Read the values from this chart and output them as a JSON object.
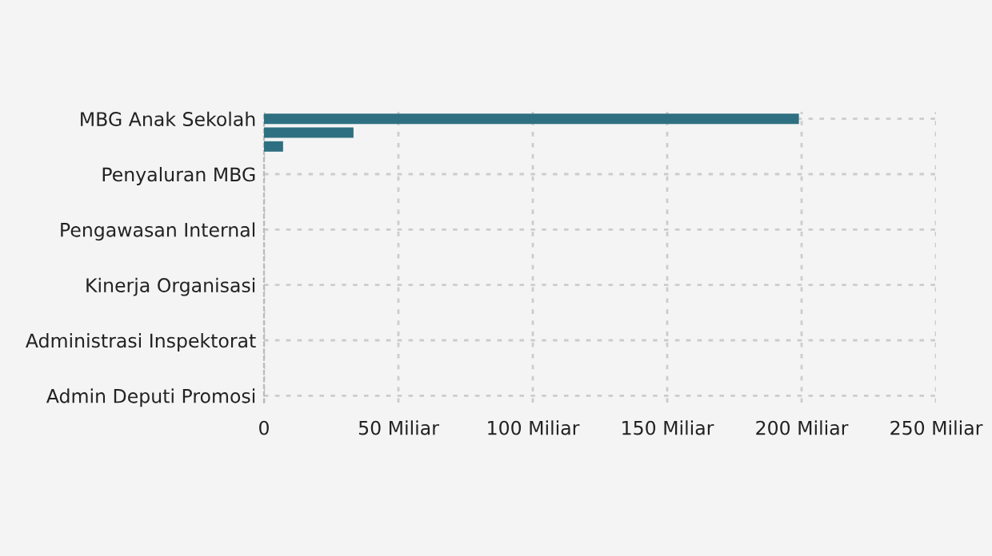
{
  "chart_data": {
    "type": "bar",
    "orientation": "horizontal",
    "categories": [
      "MBG Anak Sekolah",
      null,
      null,
      null,
      "Penyaluran MBG",
      null,
      null,
      null,
      "Pengawasan Internal",
      null,
      null,
      null,
      "Kinerja Organisasi",
      null,
      null,
      null,
      "Administrasi Inspektorat",
      null,
      null,
      null,
      "Admin Deputi Promosi"
    ],
    "values": [
      199,
      33.3,
      7.1,
      0,
      0,
      0,
      0,
      0,
      0,
      0,
      0,
      0,
      0,
      0,
      0,
      0,
      0,
      0,
      0,
      0,
      0
    ],
    "color": "#2e7081",
    "xlim": [
      0,
      250
    ],
    "xticks": [
      0,
      {
        "value": 50,
        "label": "50 Miliar"
      },
      {
        "value": 100,
        "label": "100 Miliar"
      },
      {
        "value": 150,
        "label": "150 Miliar"
      },
      {
        "value": 200,
        "label": "200 Miliar"
      },
      {
        "value": 250,
        "label": "250 Miliar"
      }
    ],
    "grid": true
  }
}
